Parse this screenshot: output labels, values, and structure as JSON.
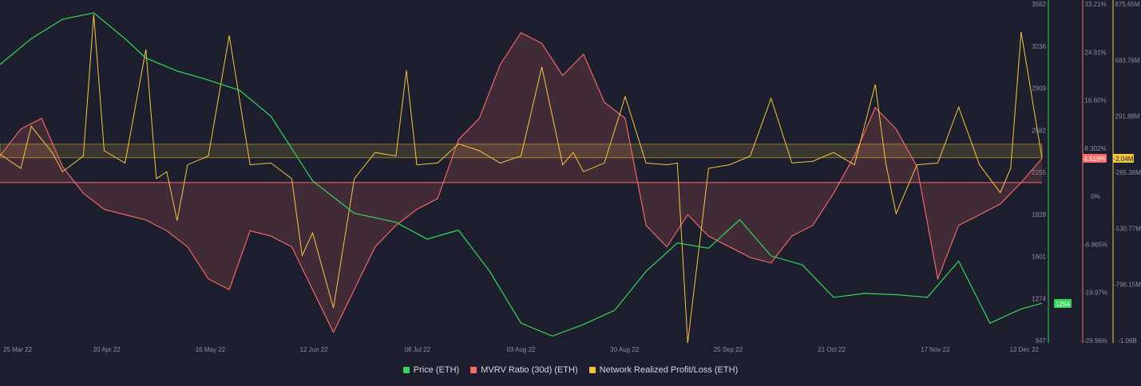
{
  "chart_data": {
    "type": "line",
    "x_ticks": [
      "25 Mar 22",
      "20 Apr 22",
      "16 May 22",
      "12 Jun 22",
      "08 Jul 22",
      "03 Aug 22",
      "30 Aug 22",
      "25 Sep 22",
      "21 Oct 22",
      "17 Nov 22",
      "12 Dec 22"
    ],
    "axes": {
      "price": {
        "ticks": [
          "3562",
          "3236",
          "2909",
          "2582",
          "2255",
          "1928",
          "1601",
          "1274",
          "947"
        ],
        "ylim": [
          947,
          3562
        ],
        "color": "#35d65a"
      },
      "mvrv": {
        "ticks": [
          "33.21%",
          "24.91%",
          "16.60%",
          "8.302%",
          "0%",
          "-6.965%",
          "-19.97%",
          "-29.96%"
        ],
        "ylim": [
          -29.96,
          33.21
        ],
        "color": "#ff6b6b"
      },
      "nrpl": {
        "ticks": [
          "875.65M",
          "583.76M",
          "291.88M",
          "-265.38M",
          "-530.77M",
          "-796.15M",
          "-1.06B"
        ],
        "ylim": [
          -1060,
          875.65
        ],
        "color": "#f5c542"
      }
    },
    "badges": {
      "price": "1254",
      "mvrv": "4.519%",
      "nrpl": "-2.04M"
    },
    "series": [
      {
        "name": "Price (ETH)",
        "color": "#35d65a",
        "x": [
          0,
          3,
          6,
          9,
          12,
          14,
          17,
          20,
          23,
          26,
          30,
          34,
          38,
          41,
          44,
          47,
          50,
          53,
          56,
          59,
          62,
          65,
          68,
          71,
          74,
          77,
          80,
          83,
          86,
          89,
          92,
          95,
          98,
          100
        ],
        "y": [
          3100,
          3300,
          3450,
          3500,
          3300,
          3150,
          3050,
          2980,
          2900,
          2700,
          2200,
          1950,
          1880,
          1750,
          1820,
          1500,
          1100,
          1000,
          1090,
          1200,
          1500,
          1720,
          1680,
          1900,
          1620,
          1550,
          1300,
          1330,
          1320,
          1300,
          1580,
          1100,
          1210,
          1254
        ]
      },
      {
        "name": "MVRV Ratio (30d) (ETH)",
        "color": "#ff6b6b",
        "x": [
          0,
          2,
          4,
          6,
          8,
          10,
          12,
          14,
          16,
          18,
          20,
          22,
          24,
          26,
          28,
          30,
          32,
          34,
          36,
          38,
          40,
          42,
          44,
          46,
          48,
          50,
          52,
          54,
          56,
          58,
          60,
          62,
          64,
          66,
          68,
          70,
          72,
          74,
          76,
          78,
          80,
          82,
          84,
          86,
          88,
          90,
          92,
          94,
          96,
          98,
          100
        ],
        "y": [
          5,
          10,
          12,
          3,
          -2,
          -5,
          -6,
          -7,
          -9,
          -12,
          -18,
          -20,
          -9,
          -10,
          -12,
          -20,
          -28,
          -20,
          -12,
          -8,
          -5,
          -3,
          8,
          12,
          22,
          28,
          26,
          20,
          24,
          15,
          12,
          -8,
          -12,
          -6,
          -10,
          -12,
          -14,
          -15,
          -10,
          -8,
          -2,
          5,
          14,
          10,
          3,
          -18,
          -8,
          -6,
          -4,
          0,
          4.519
        ]
      },
      {
        "name": "Network Realized Profit/Loss (ETH)",
        "color": "#f5c542",
        "x": [
          0,
          2,
          3,
          5,
          6,
          8,
          9,
          10,
          12,
          14,
          15,
          16,
          17,
          18,
          20,
          22,
          24,
          26,
          28,
          29,
          30,
          32,
          34,
          36,
          38,
          39,
          40,
          42,
          44,
          46,
          48,
          50,
          52,
          54,
          55,
          56,
          58,
          60,
          62,
          64,
          65,
          66,
          68,
          70,
          72,
          74,
          76,
          78,
          80,
          82,
          84,
          85,
          86,
          88,
          90,
          92,
          94,
          96,
          97,
          98,
          100
        ],
        "y": [
          20,
          -60,
          180,
          30,
          -80,
          10,
          820,
          40,
          -30,
          620,
          -120,
          -80,
          -360,
          -40,
          10,
          700,
          -40,
          -30,
          -120,
          -560,
          -430,
          -860,
          -120,
          30,
          10,
          500,
          -40,
          -30,
          80,
          40,
          -30,
          10,
          520,
          -40,
          30,
          -80,
          -30,
          350,
          -30,
          -40,
          -30,
          -1060,
          -60,
          -40,
          10,
          340,
          -30,
          -20,
          30,
          -40,
          420,
          -30,
          -320,
          -40,
          -30,
          290,
          -40,
          -200,
          -60,
          720,
          -2.04
        ]
      }
    ]
  }
}
